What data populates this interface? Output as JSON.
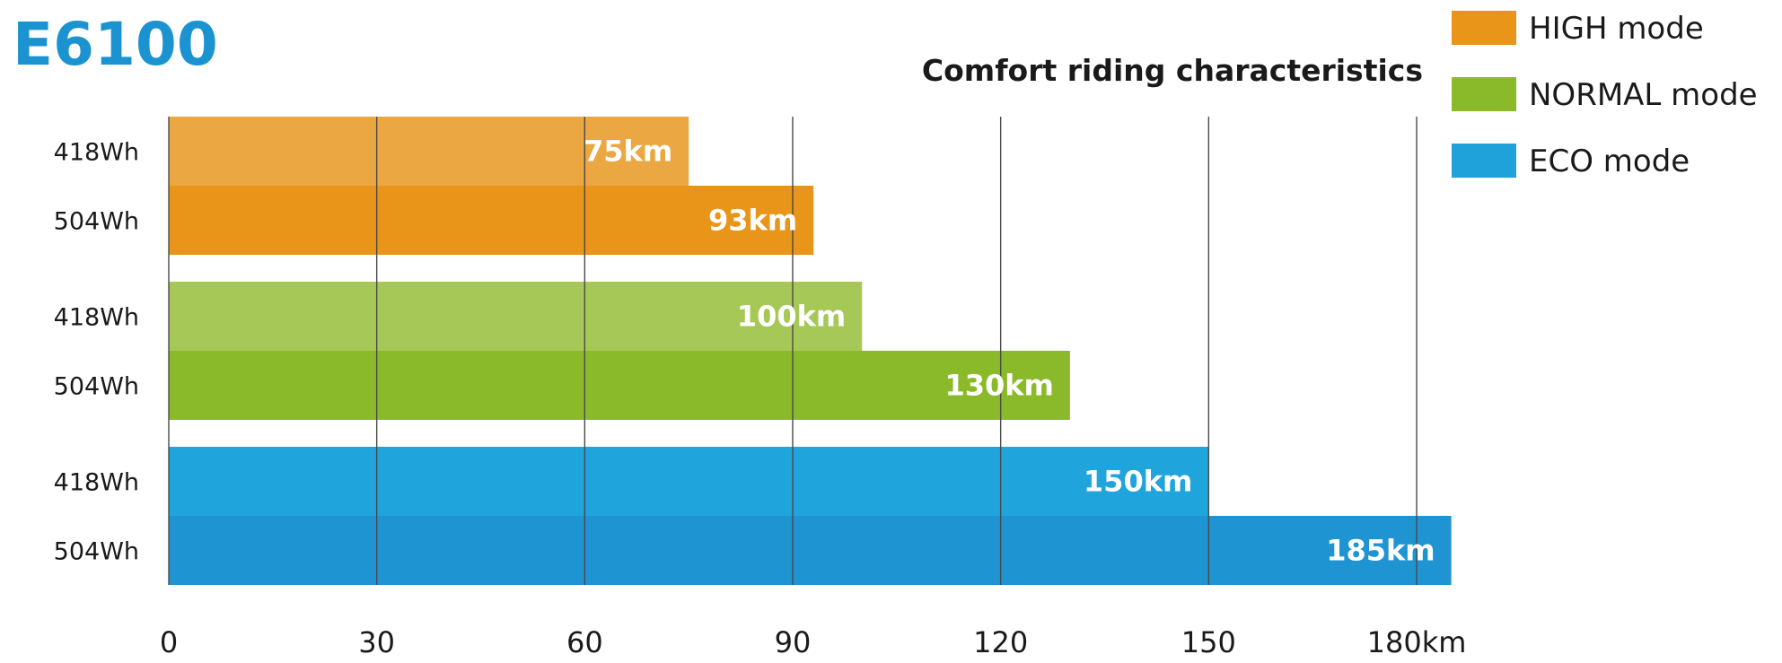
{
  "brand_title": "E6100",
  "chart_data": {
    "type": "bar",
    "orientation": "horizontal",
    "title": "Comfort riding characteristics",
    "xlim": [
      0,
      180
    ],
    "ticks": [
      {
        "value": 0,
        "label": "0"
      },
      {
        "value": 30,
        "label": "30"
      },
      {
        "value": 60,
        "label": "60"
      },
      {
        "value": 90,
        "label": "90"
      },
      {
        "value": 120,
        "label": "120"
      },
      {
        "value": 150,
        "label": "150"
      },
      {
        "value": 180,
        "label": "180km"
      }
    ],
    "grid": true,
    "legend_position": "top-right",
    "legend": [
      {
        "name": "HIGH mode",
        "color": "#e8951a"
      },
      {
        "name": "NORMAL mode",
        "color": "#8aba2a"
      },
      {
        "name": "ECO mode",
        "color": "#1fa2da"
      }
    ],
    "groups": [
      {
        "mode": "HIGH mode",
        "bars": [
          {
            "category": "418Wh",
            "value": 75,
            "label": "75km",
            "color": "#eba842"
          },
          {
            "category": "504Wh",
            "value": 93,
            "label": "93km",
            "color": "#e8951a"
          }
        ]
      },
      {
        "mode": "NORMAL mode",
        "bars": [
          {
            "category": "418Wh",
            "value": 100,
            "label": "100km",
            "color": "#a6c857"
          },
          {
            "category": "504Wh",
            "value": 130,
            "label": "130km",
            "color": "#8aba2a"
          }
        ]
      },
      {
        "mode": "ECO mode",
        "bars": [
          {
            "category": "418Wh",
            "value": 150,
            "label": "150km",
            "color": "#20a4dc"
          },
          {
            "category": "504Wh",
            "value": 185,
            "label": "185km",
            "color": "#1e95d2"
          }
        ]
      }
    ]
  }
}
